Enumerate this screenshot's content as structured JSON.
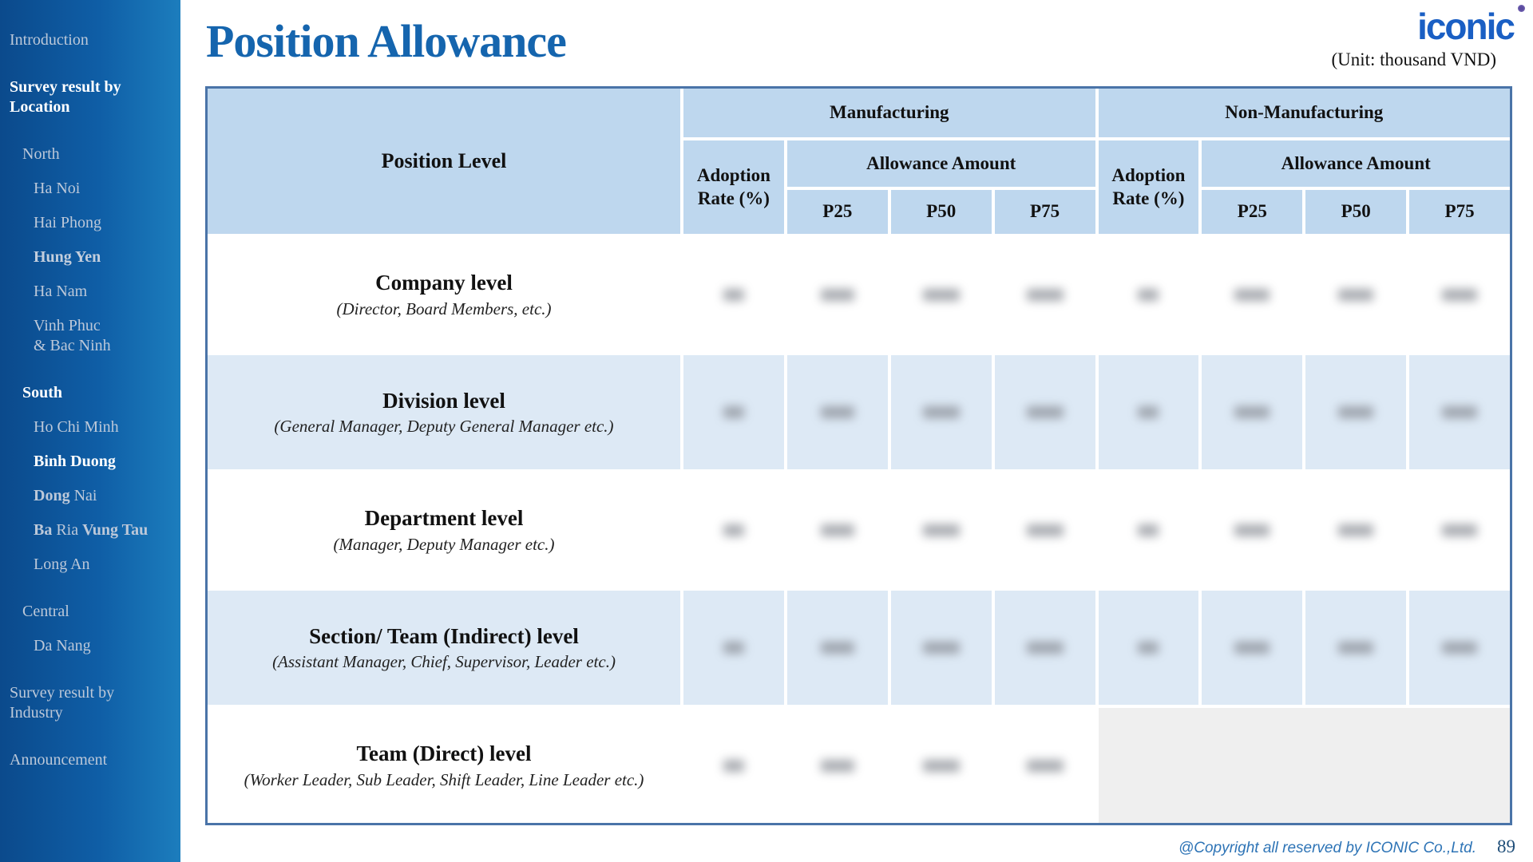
{
  "slide": {
    "title": "Position Allowance",
    "unit_note": "(Unit: thousand VND)",
    "logo_text": "iconic",
    "footer": {
      "copyright": "@Copyright all reserved by ICONIC Co.,Ltd.",
      "page_number": "89"
    }
  },
  "sidebar": {
    "items": [
      {
        "id": "introduction",
        "text": "Introduction",
        "level": 0,
        "style": "normal",
        "section_start": false
      },
      {
        "id": "survey-result-by-location",
        "text": "Survey result by\nLocation",
        "level": 0,
        "style": "bold-white",
        "section_start": true
      },
      {
        "id": "north",
        "text": "North",
        "level": 1,
        "style": "normal",
        "section_start": true
      },
      {
        "id": "ha-noi",
        "text": "Ha Noi",
        "level": 2,
        "style": "normal",
        "section_start": false
      },
      {
        "id": "hai-phong",
        "text": "Hai Phong",
        "level": 2,
        "style": "normal",
        "section_start": false
      },
      {
        "id": "hung-yen",
        "text": "Hung Yen",
        "level": 2,
        "style": "bold-gray",
        "section_start": false
      },
      {
        "id": "ha-nam",
        "text": "Ha Nam",
        "level": 2,
        "style": "normal",
        "section_start": false
      },
      {
        "id": "vinh-phuc-bac-ninh",
        "text": "Vinh Phuc\n& Bac Ninh",
        "level": 2,
        "style": "normal",
        "section_start": false
      },
      {
        "id": "south",
        "text": "South",
        "level": 1,
        "style": "bold-white",
        "section_start": true
      },
      {
        "id": "ho-chi-minh",
        "text": "Ho Chi Minh",
        "level": 2,
        "style": "normal",
        "section_start": false
      },
      {
        "id": "binh-duong",
        "text": "Binh Duong",
        "level": 2,
        "style": "bold-white",
        "section_start": false
      },
      {
        "id": "dong-nai",
        "level": 2,
        "style": "normal",
        "section_start": false,
        "segments": [
          {
            "text": "Dong ",
            "bold": true
          },
          {
            "text": "Nai",
            "bold": false
          }
        ]
      },
      {
        "id": "ba-ria-vung-tau",
        "level": 2,
        "style": "normal",
        "section_start": false,
        "segments": [
          {
            "text": "Ba ",
            "bold": true
          },
          {
            "text": "Ria ",
            "bold": false
          },
          {
            "text": "Vung Tau",
            "bold": true
          }
        ]
      },
      {
        "id": "long-an",
        "text": "Long An",
        "level": 2,
        "style": "normal",
        "section_start": false
      },
      {
        "id": "central",
        "text": "Central",
        "level": 1,
        "style": "normal",
        "section_start": true
      },
      {
        "id": "da-nang",
        "text": "Da Nang",
        "level": 2,
        "style": "normal",
        "section_start": false
      },
      {
        "id": "survey-result-by-industry",
        "text": "Survey result by\nIndustry",
        "level": 0,
        "style": "normal",
        "section_start": true
      },
      {
        "id": "announcement",
        "text": "Announcement",
        "level": 0,
        "style": "normal",
        "section_start": true
      }
    ]
  },
  "table": {
    "position_level_header": "Position Level",
    "group_headers": [
      "Manufacturing",
      "Non-Manufacturing"
    ],
    "adoption_rate_header": "Adoption Rate (%)",
    "allowance_amount_header": "Allowance Amount",
    "percentiles": [
      "P25",
      "P50",
      "P75"
    ],
    "values_redacted": true,
    "rows": [
      {
        "title": "Company level",
        "subtitle": "(Director, Board Members, etc.)",
        "redacted_cells": 8,
        "non_mfg_empty": false
      },
      {
        "title": "Division level",
        "subtitle": "(General Manager, Deputy General Manager etc.)",
        "redacted_cells": 8,
        "non_mfg_empty": false
      },
      {
        "title": "Department level",
        "subtitle": "(Manager, Deputy Manager etc.)",
        "redacted_cells": 8,
        "non_mfg_empty": false
      },
      {
        "title": "Section/ Team (Indirect) level",
        "subtitle": "(Assistant Manager, Chief, Supervisor, Leader etc.)",
        "redacted_cells": 8,
        "non_mfg_empty": false
      },
      {
        "title": "Team (Direct) level",
        "subtitle": "(Worker Leader, Sub Leader, Shift Leader, Line Leader etc.)",
        "redacted_cells": 4,
        "non_mfg_empty": true
      }
    ]
  },
  "colors": {
    "accent_blue": "#1565ae",
    "logo_blue": "#1a5fc4",
    "sidebar_gradient_left": "#0b4a8c",
    "sidebar_gradient_right": "#1c7dbd",
    "table_header_bg": "#bed7ee",
    "table_alt_row_bg": "#dde9f5",
    "table_border": "#4a74a8",
    "empty_cell_bg": "#efefef",
    "footer_blue": "#2e74b6",
    "corner_dot_purple": "#5b4b9f"
  }
}
